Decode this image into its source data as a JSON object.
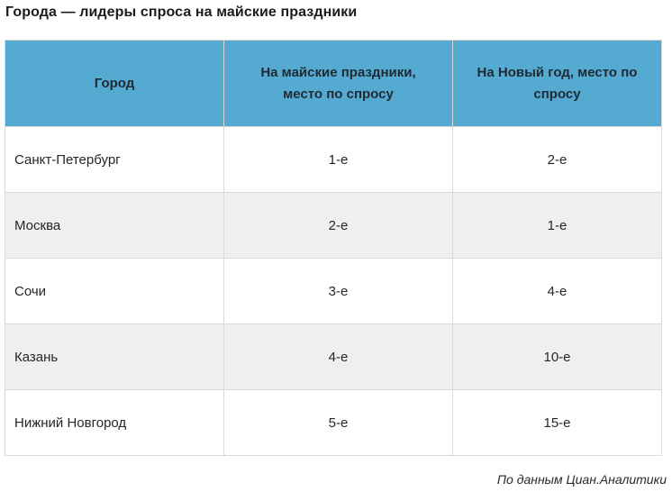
{
  "title": "Города — лидеры спроса на майские праздники",
  "table": {
    "headers": [
      "Город",
      "На майские праздники, место по спросу",
      "На Новый год, место по спросу"
    ],
    "rows": [
      {
        "city": "Санкт-Петербург",
        "may": "1-е",
        "new_year": "2-е"
      },
      {
        "city": "Москва",
        "may": "2-е",
        "new_year": "1-е"
      },
      {
        "city": "Сочи",
        "may": "3-е",
        "new_year": "4-е"
      },
      {
        "city": "Казань",
        "may": "4-е",
        "new_year": "10-е"
      },
      {
        "city": "Нижний Новгород",
        "may": "5-е",
        "new_year": "15-е"
      }
    ]
  },
  "source": "По данным Циан.Аналитики",
  "colors": {
    "header_bg": "#55aad2",
    "row_alt_bg": "#efefef",
    "border": "#d9d9d9"
  }
}
